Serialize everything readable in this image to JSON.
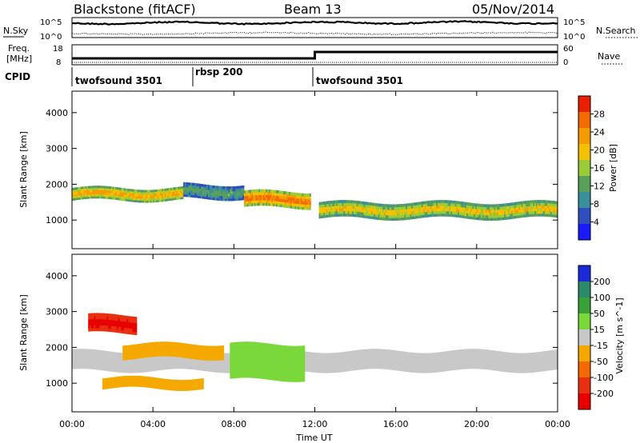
{
  "header": {
    "station": "Blackstone (fitACF)",
    "beam": "Beam 13",
    "date": "05/Nov/2014"
  },
  "noise_panel": {
    "left_label": "N.Sky",
    "right_label": "N.Search",
    "left_ticks": [
      "10^5",
      "10^0"
    ],
    "right_ticks": [
      "10^5",
      "10^0"
    ]
  },
  "freq_panel": {
    "left_label_1": "Freq.",
    "left_label_2": "[MHz]",
    "left_ticks": [
      "18",
      "8"
    ],
    "right_label": "Nave",
    "right_ticks": [
      "60",
      "0"
    ]
  },
  "cpid": {
    "label": "CPID",
    "segments": [
      {
        "name": "twofsound 3501",
        "start": 0,
        "end": 6
      },
      {
        "name": "rbsp 200",
        "start": 6,
        "end": 12
      },
      {
        "name": "twofsound 3501",
        "start": 12,
        "end": 24
      }
    ]
  },
  "chart_data": [
    {
      "type": "heatmap",
      "title": "Power",
      "ylabel": "Slant Range [km]",
      "x_range_hours": [
        0,
        24
      ],
      "ylim": [
        200,
        4600
      ],
      "y_ticks": [
        1000,
        2000,
        3000,
        4000
      ],
      "colorbar": {
        "label": "Power [dB]",
        "ticks": [
          4,
          8,
          12,
          16,
          20,
          24,
          28
        ],
        "colors": [
          "#1a1aff",
          "#2f4fbf",
          "#3a8f9a",
          "#5aa05a",
          "#9acc3a",
          "#f2c200",
          "#f59a00",
          "#f26a00",
          "#e82000"
        ]
      },
      "bands": [
        {
          "t0": 0,
          "t1": 5.5,
          "range_lo": 1550,
          "range_hi": 1900,
          "value": 22
        },
        {
          "t0": 5.5,
          "t1": 8.5,
          "range_lo": 1600,
          "range_hi": 2000,
          "value": 14
        },
        {
          "t0": 8.5,
          "t1": 11.8,
          "range_lo": 1350,
          "range_hi": 1800,
          "value": 25
        },
        {
          "t0": 12.2,
          "t1": 24,
          "range_lo": 1050,
          "range_hi": 1500,
          "value": 20
        }
      ]
    },
    {
      "type": "heatmap",
      "title": "Velocity",
      "ylabel": "Slant Range [km]",
      "x_range_hours": [
        0,
        24
      ],
      "ylim": [
        200,
        4600
      ],
      "y_ticks": [
        1000,
        2000,
        3000,
        4000
      ],
      "colorbar": {
        "label": "Velocity [m s^-1]",
        "ticks": [
          200,
          100,
          50,
          15,
          -15,
          -50,
          -100,
          -200
        ],
        "colors": [
          "#1a2ad8",
          "#2a8a6a",
          "#3aa03a",
          "#7ad83a",
          "#c8c8c8",
          "#f5a800",
          "#f56a00",
          "#e83010",
          "#e80000"
        ]
      },
      "bands": [
        {
          "t0": 0.8,
          "t1": 3.2,
          "range_lo": 2400,
          "range_hi": 2900,
          "value": -200
        },
        {
          "t0": 0,
          "t1": 24,
          "range_lo": 1350,
          "range_hi": 1900,
          "value": 0
        },
        {
          "t0": 2.5,
          "t1": 7.5,
          "range_lo": 1700,
          "range_hi": 2100,
          "value": -60
        },
        {
          "t0": 7.8,
          "t1": 11.5,
          "range_lo": 1100,
          "range_hi": 2100,
          "value": 60
        },
        {
          "t0": 1.5,
          "t1": 6.5,
          "range_lo": 850,
          "range_hi": 1150,
          "value": -50
        }
      ]
    }
  ],
  "x_axis": {
    "label": "Time UT",
    "ticks": [
      "00:00",
      "04:00",
      "08:00",
      "12:00",
      "16:00",
      "20:00",
      "00:00"
    ]
  }
}
